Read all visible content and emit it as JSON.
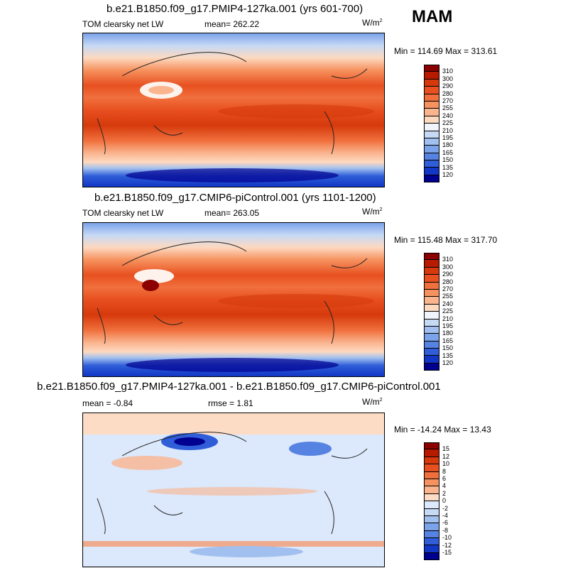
{
  "season": "MAM",
  "panels": [
    {
      "title": "b.e21.B1850.f09_g17.PMIP4-127ka.001 (yrs 601-700)",
      "left_label": "TOM clearsky net LW",
      "center_label": "mean= 262.22",
      "units": "W/m",
      "units_sup": "2",
      "minmax": "Min = 114.69 Max = 313.61",
      "colorbar": {
        "labels": [
          "310",
          "300",
          "290",
          "280",
          "270",
          "255",
          "240",
          "225",
          "210",
          "195",
          "180",
          "165",
          "150",
          "135",
          "120"
        ],
        "colors": [
          "#8b0000",
          "#b81a00",
          "#d63a0c",
          "#e85020",
          "#f0703d",
          "#f6925f",
          "#fab48e",
          "#fdd9c0",
          "#f2f4fb",
          "#c6d9f5",
          "#a2c0ef",
          "#7ba3e9",
          "#5682e2",
          "#2f5ed8",
          "#1236c6",
          "#000090"
        ]
      }
    },
    {
      "title": "b.e21.B1850.f09_g17.CMIP6-piControl.001 (yrs 1101-1200)",
      "left_label": "TOM clearsky net LW",
      "center_label": "mean= 263.05",
      "units": "W/m",
      "units_sup": "2",
      "minmax": "Min = 115.48 Max = 317.70",
      "colorbar": {
        "labels": [
          "310",
          "300",
          "290",
          "280",
          "270",
          "255",
          "240",
          "225",
          "210",
          "195",
          "180",
          "165",
          "150",
          "135",
          "120"
        ],
        "colors": [
          "#8b0000",
          "#b81a00",
          "#d63a0c",
          "#e85020",
          "#f0703d",
          "#f6925f",
          "#fab48e",
          "#fdd9c0",
          "#f2f4fb",
          "#c6d9f5",
          "#a2c0ef",
          "#7ba3e9",
          "#5682e2",
          "#2f5ed8",
          "#1236c6",
          "#000090"
        ]
      }
    },
    {
      "title": "b.e21.B1850.f09_g17.PMIP4-127ka.001 - b.e21.B1850.f09_g17.CMIP6-piControl.001",
      "left_label": "mean =  -0.84",
      "center_label": "rmse =   1.81",
      "units": "W/m",
      "units_sup": "2",
      "minmax": "Min = -14.24 Max =  13.43",
      "colorbar": {
        "labels": [
          "15",
          "12",
          "10",
          "8",
          "6",
          "4",
          "2",
          "0",
          "-2",
          "-4",
          "-6",
          "-8",
          "-10",
          "-12",
          "-15"
        ],
        "colors": [
          "#8b0000",
          "#b81a00",
          "#d63a0c",
          "#e85020",
          "#f0703d",
          "#f6925f",
          "#fab48e",
          "#fddcc6",
          "#dce8fb",
          "#c6d9f5",
          "#a2c0ef",
          "#7ba3e9",
          "#5682e2",
          "#2f5ed8",
          "#1236c6",
          "#000090"
        ]
      }
    }
  ]
}
